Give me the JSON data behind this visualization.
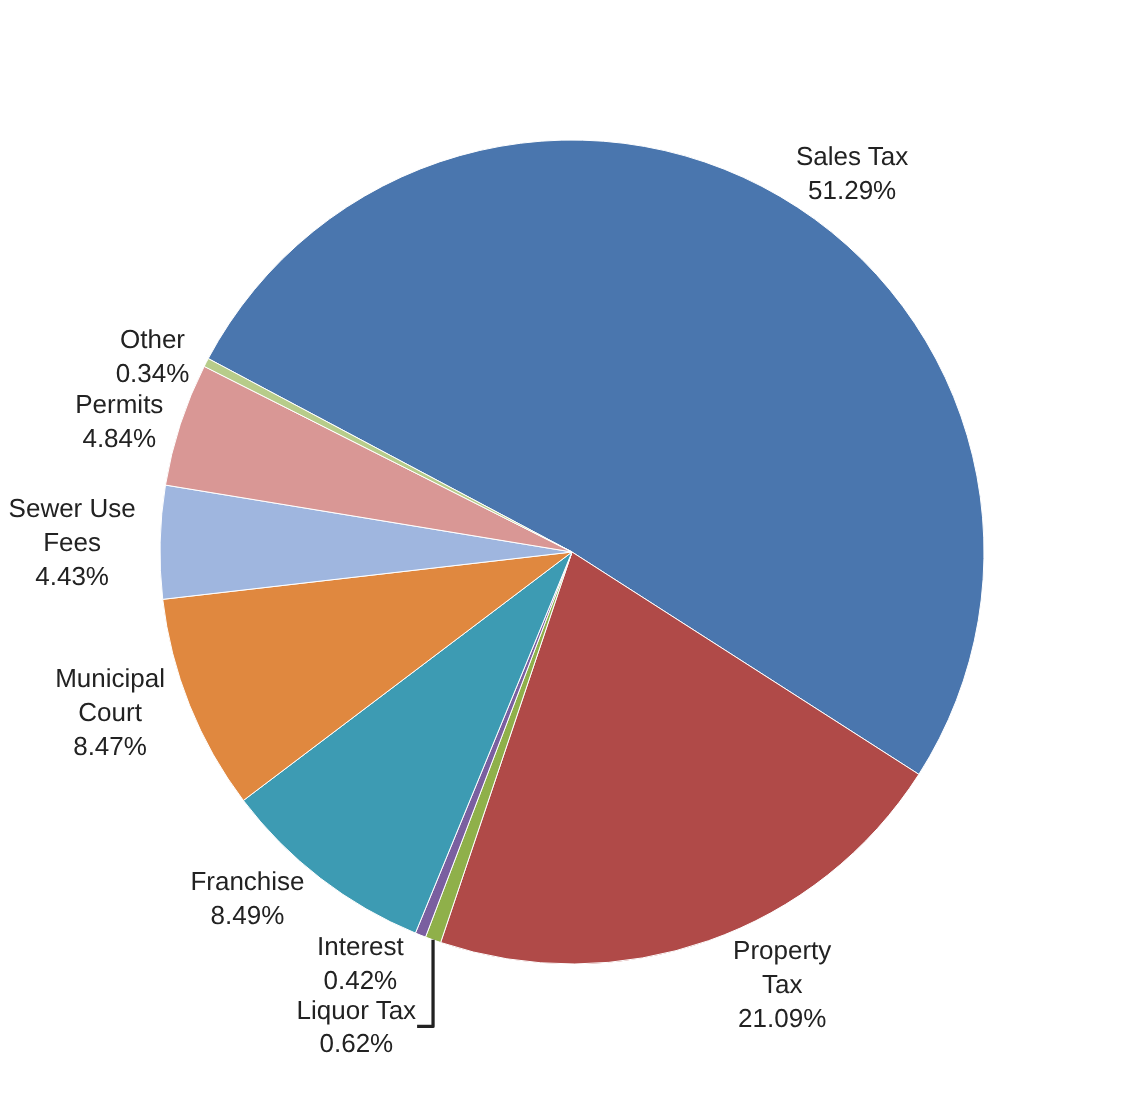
{
  "chart_data": {
    "type": "pie",
    "categories": [
      "Sales Tax",
      "Property Tax",
      "Liquor Tax",
      "Interest",
      "Franchise",
      "Municipal Court",
      "Sewer Use Fees",
      "Permits",
      "Other"
    ],
    "values": [
      51.29,
      21.09,
      0.62,
      0.42,
      8.49,
      8.47,
      4.43,
      4.84,
      0.34
    ],
    "value_labels": [
      "51.29%",
      "21.09%",
      "0.62%",
      "0.42%",
      "8.49%",
      "8.47%",
      "4.43%",
      "4.84%",
      "0.34%"
    ],
    "colors": [
      "#4a76ae",
      "#b04a48",
      "#8fb04a",
      "#7a5fa0",
      "#3d9bb3",
      "#e0883f",
      "#9fb6df",
      "#d99795",
      "#b7cc8a"
    ],
    "legend": false
  }
}
